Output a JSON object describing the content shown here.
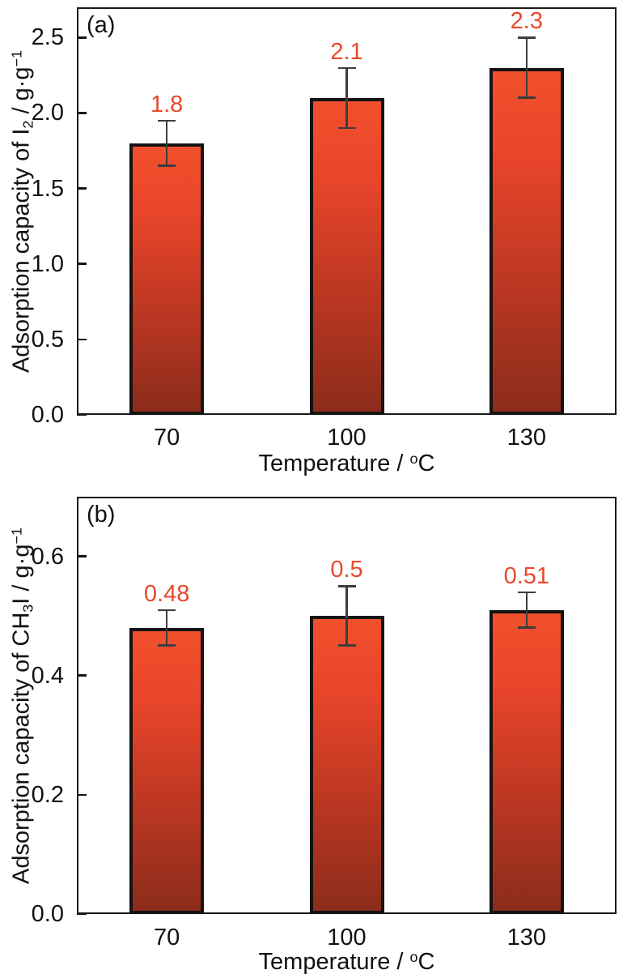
{
  "figure_title": "",
  "colors": {
    "bar_top": "#f1502c",
    "bar_upper": "#e8452a",
    "bar_lower": "#bc3722",
    "bar_bottom": "#8c2c1b",
    "bar_border": "#141414",
    "frame": "#1a1a1a",
    "error_bar": "#3d3d3d",
    "value_label": "#e8492c",
    "text": "#111111",
    "background": "#ffffff"
  },
  "chart_data": [
    {
      "type": "bar",
      "panel_label": "(a)",
      "categories": [
        "70",
        "100",
        "130"
      ],
      "values": [
        1.8,
        2.1,
        2.3
      ],
      "value_labels": [
        "1.8",
        "2.1",
        "2.3"
      ],
      "errors_plus": [
        0.15,
        0.2,
        0.2
      ],
      "errors_minus": [
        0.15,
        0.2,
        0.2
      ],
      "yticks": [
        0,
        0.5,
        1,
        1.5,
        2,
        2.5
      ],
      "ytick_labels": [
        "0.0",
        "0.5",
        "1.0",
        "1.5",
        "2.0",
        "2.5"
      ],
      "ylim": [
        0,
        2.7
      ],
      "grid": "off",
      "legend": "none",
      "ylabel_text": "Adsorption capacity of I2 / g·g−1",
      "ylabel_parts": [
        {
          "t": "Adsorption capacity of I"
        },
        {
          "t": "2",
          "s": "sub"
        },
        {
          "t": " / g·g"
        },
        {
          "t": "−1",
          "s": "sup"
        }
      ],
      "xlabel_text": "Temperature / oC",
      "xlabel_parts": [
        {
          "t": "Temperature / "
        },
        {
          "t": "o",
          "s": "sup"
        },
        {
          "t": "C"
        }
      ]
    },
    {
      "type": "bar",
      "panel_label": "(b)",
      "categories": [
        "70",
        "100",
        "130"
      ],
      "values": [
        0.48,
        0.5,
        0.51
      ],
      "value_labels": [
        "0.48",
        "0.5",
        "0.51"
      ],
      "errors_plus": [
        0.03,
        0.05,
        0.03
      ],
      "errors_minus": [
        0.03,
        0.05,
        0.03
      ],
      "yticks": [
        0,
        0.2,
        0.4,
        0.6
      ],
      "ytick_labels": [
        "0.0",
        "0.2",
        "0.4",
        "0.6"
      ],
      "ylim": [
        0,
        0.7
      ],
      "grid": "off",
      "legend": "none",
      "ylabel_text": "Adsorption capacity of CH3I / g·g−1",
      "ylabel_parts": [
        {
          "t": "Adsorption capacity of CH"
        },
        {
          "t": "3",
          "s": "sub"
        },
        {
          "t": "I / g·g"
        },
        {
          "t": "−1",
          "s": "sup"
        }
      ],
      "xlabel_text": "Temperature / oC",
      "xlabel_parts": [
        {
          "t": "Temperature / "
        },
        {
          "t": "o",
          "s": "sup"
        },
        {
          "t": "C"
        }
      ]
    }
  ]
}
